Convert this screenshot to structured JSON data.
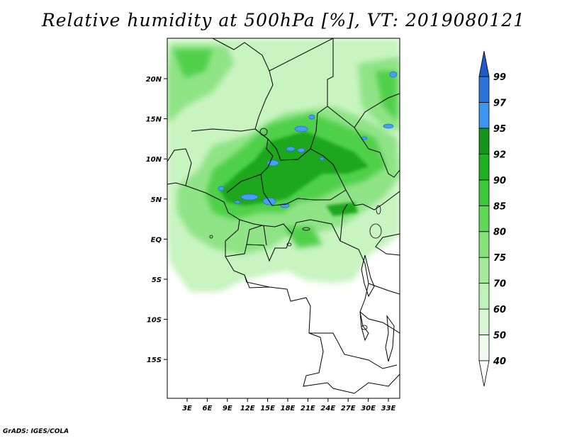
{
  "title": "Relative humidity at 500hPa [%], VT: 2019080121",
  "credit": "GrADS: IGES/COLA",
  "map": {
    "lon_ticks": [
      "3E",
      "6E",
      "9E",
      "12E",
      "15E",
      "18E",
      "21E",
      "24E",
      "27E",
      "30E",
      "33E"
    ],
    "lat_ticks": [
      "20N",
      "15N",
      "10N",
      "5N",
      "EQ",
      "5S",
      "10S",
      "15S"
    ]
  },
  "colorbar": {
    "levels": [
      "40",
      "50",
      "60",
      "70",
      "75",
      "80",
      "85",
      "90",
      "92",
      "95",
      "97",
      "99"
    ],
    "colors": [
      "#f0fcf0",
      "#d7f7d4",
      "#bff2b9",
      "#a3eb9b",
      "#86e37c",
      "#5fd856",
      "#3dc83a",
      "#1eb021",
      "#12961a",
      "#3c96f0",
      "#2a74dc",
      "#1e5ac8"
    ]
  },
  "regions": {
    "blue-patches": "95-99",
    "white-area": "below 40"
  }
}
